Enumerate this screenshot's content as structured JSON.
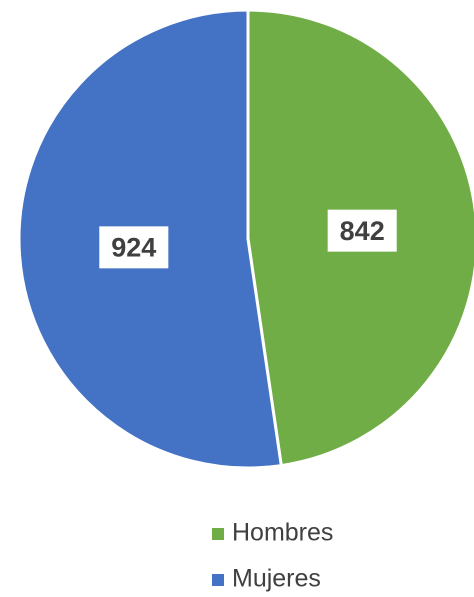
{
  "chart_data": {
    "type": "pie",
    "categories": [
      "Hombres",
      "Mujeres"
    ],
    "values": [
      842,
      924
    ],
    "colors": [
      "#70ad47",
      "#4472c4"
    ],
    "legend": "bottom"
  }
}
